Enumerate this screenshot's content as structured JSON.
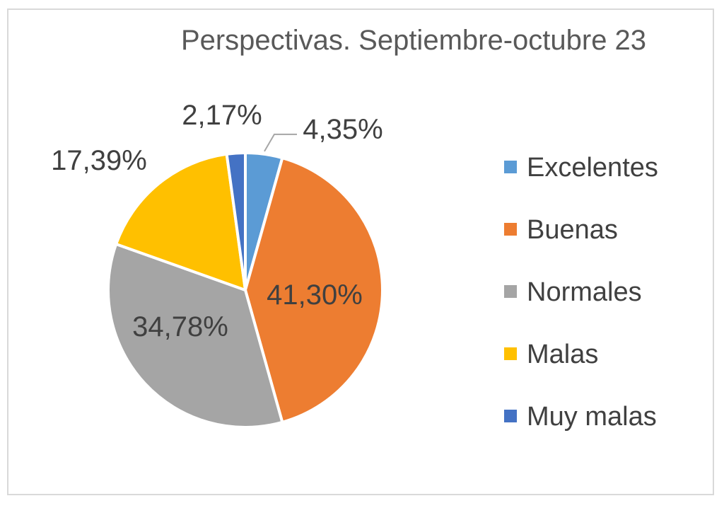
{
  "chart_data": {
    "type": "pie",
    "title": "Perspectivas. Septiembre-octubre 23",
    "legend_position": "right",
    "slices": [
      {
        "name": "Excelentes",
        "value": 4.35,
        "label": "4,35%",
        "color": "#5b9bd5"
      },
      {
        "name": "Buenas",
        "value": 41.3,
        "label": "41,30%",
        "color": "#ed7d31"
      },
      {
        "name": "Normales",
        "value": 34.78,
        "label": "34,78%",
        "color": "#a5a5a5"
      },
      {
        "name": "Malas",
        "value": 17.39,
        "label": "17,39%",
        "color": "#ffc000"
      },
      {
        "name": "Muy malas",
        "value": 2.17,
        "label": "2,17%",
        "color": "#4472c4"
      }
    ]
  }
}
